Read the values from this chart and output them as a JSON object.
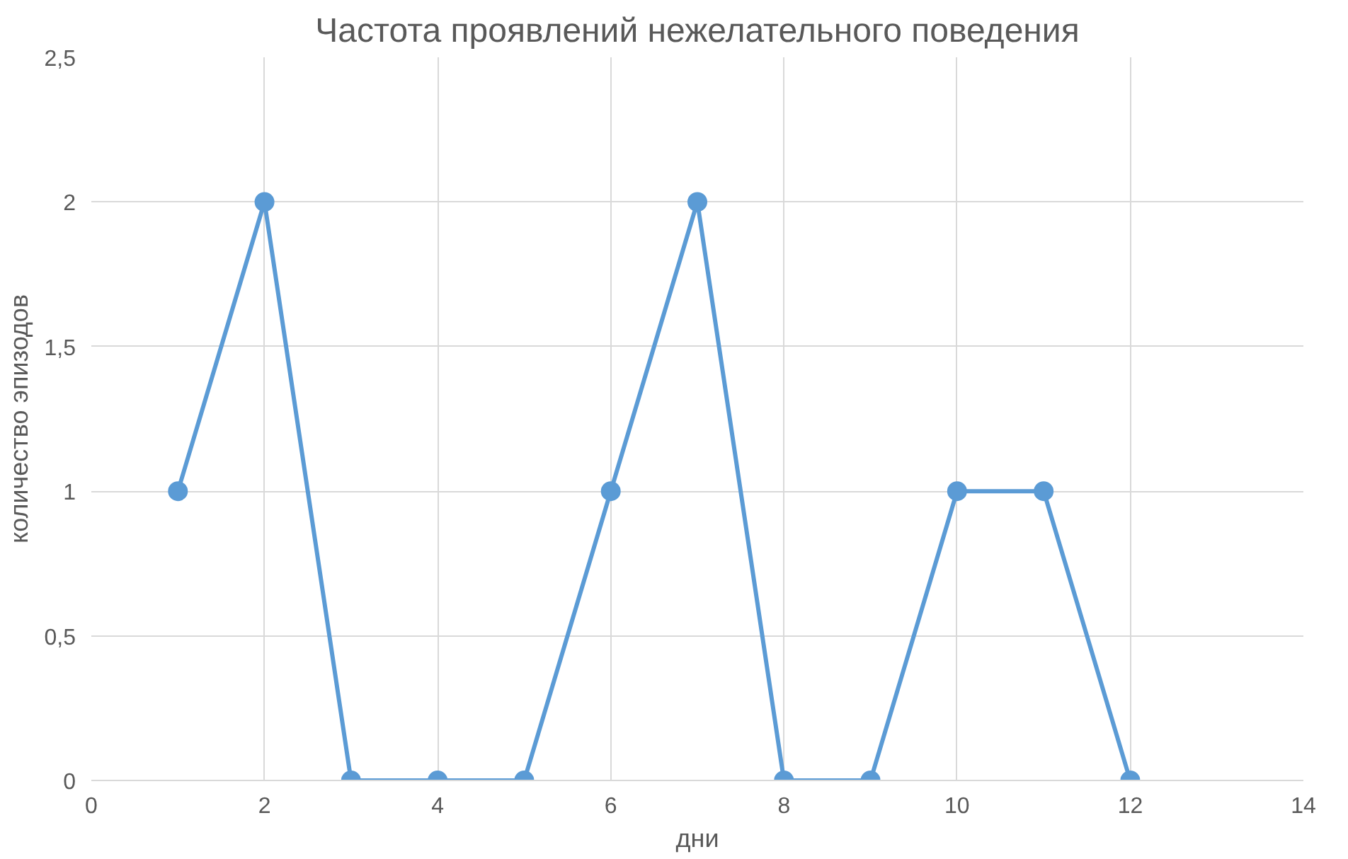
{
  "chart_data": {
    "type": "line",
    "title": "Частота проявлений нежелательного поведения",
    "xlabel": "дни",
    "ylabel": "количество эпизодов",
    "x": [
      1,
      2,
      3,
      4,
      5,
      6,
      7,
      8,
      9,
      10,
      11,
      12
    ],
    "series": [
      {
        "color": "#5b9bd5",
        "values": [
          1,
          2,
          0,
          0,
          0,
          1,
          2,
          0,
          0,
          1,
          1,
          0
        ]
      }
    ],
    "xlim": [
      0,
      14
    ],
    "xticks": [
      0,
      2,
      4,
      6,
      8,
      10,
      12,
      14
    ],
    "ylim": [
      0,
      2.5
    ],
    "yticks": [
      0,
      {
        "value": 0.5,
        "label": "0,5"
      },
      1,
      {
        "value": 1.5,
        "label": "1,5"
      },
      2,
      {
        "value": 2.5,
        "label": "2,5"
      }
    ],
    "grid": true,
    "marker": "circle",
    "line_style": "solid"
  }
}
